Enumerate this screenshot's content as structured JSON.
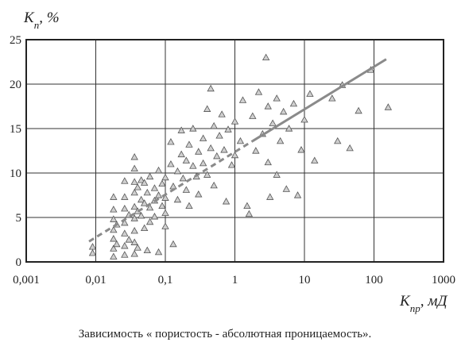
{
  "chart_data": {
    "type": "scatter",
    "y_label": {
      "symbol": "K",
      "subscript": "п",
      "unit": ", %"
    },
    "x_label": {
      "symbol": "K",
      "subscript": "пр",
      "unit": ", мД"
    },
    "caption": "Зависимость « пористость - абсолютная проницаемость».",
    "xscale": "log",
    "grid": true,
    "xlim": [
      0.001,
      1000
    ],
    "ylim": [
      0,
      25
    ],
    "xticks": [
      {
        "value": 0.001,
        "label": "0,001"
      },
      {
        "value": 0.01,
        "label": "0,01"
      },
      {
        "value": 0.1,
        "label": "0,1"
      },
      1,
      10,
      100,
      1000
    ],
    "yticks": [
      0,
      5,
      10,
      15,
      20,
      25
    ],
    "series": [
      {
        "type": "scatter",
        "color": "#cfcfcf",
        "x": [
          0.009,
          0.009,
          0.018,
          0.018,
          0.018,
          0.018,
          0.018,
          0.018,
          0.018,
          0.02,
          0.02,
          0.026,
          0.026,
          0.026,
          0.026,
          0.026,
          0.026,
          0.026,
          0.03,
          0.03,
          0.036,
          0.036,
          0.036,
          0.036,
          0.036,
          0.036,
          0.036,
          0.036,
          0.036,
          0.04,
          0.04,
          0.04,
          0.045,
          0.045,
          0.045,
          0.05,
          0.05,
          0.05,
          0.055,
          0.055,
          0.06,
          0.06,
          0.06,
          0.07,
          0.07,
          0.07,
          0.08,
          0.08,
          0.08,
          0.09,
          0.09,
          0.1,
          0.1,
          0.1,
          0.1,
          0.12,
          0.12,
          0.13,
          0.13,
          0.15,
          0.15,
          0.17,
          0.17,
          0.18,
          0.2,
          0.2,
          0.22,
          0.22,
          0.25,
          0.25,
          0.28,
          0.3,
          0.3,
          0.35,
          0.35,
          0.4,
          0.4,
          0.45,
          0.45,
          0.5,
          0.5,
          0.55,
          0.6,
          0.65,
          0.7,
          0.75,
          0.8,
          0.9,
          1.0,
          1.0,
          1.2,
          1.3,
          1.5,
          1.6,
          1.8,
          2.0,
          2.2,
          2.5,
          2.8,
          3.0,
          3.0,
          3.2,
          3.5,
          4.0,
          4.0,
          4.5,
          5,
          5.5,
          6,
          7,
          8,
          9,
          10,
          12,
          14,
          25,
          30,
          35,
          45,
          60,
          90,
          160
        ],
        "values": [
          1.7,
          1.0,
          7.3,
          5.9,
          4.8,
          3.6,
          2.6,
          1.5,
          0.6,
          4.2,
          2.0,
          9.1,
          7.3,
          6.0,
          4.4,
          3.2,
          1.8,
          0.8,
          5.3,
          2.5,
          11.8,
          10.5,
          9.0,
          7.8,
          6.2,
          4.9,
          3.5,
          2.2,
          0.9,
          8.4,
          5.7,
          1.6,
          9.2,
          7.0,
          5.2,
          8.9,
          6.6,
          3.8,
          7.8,
          1.3,
          9.6,
          6.1,
          4.5,
          8.3,
          6.9,
          5.1,
          10.3,
          7.5,
          1.1,
          8.8,
          6.3,
          9.5,
          7.2,
          5.5,
          4.0,
          13.5,
          11.0,
          8.5,
          2.0,
          10.2,
          7.0,
          14.8,
          12.1,
          9.4,
          11.4,
          8.1,
          13.2,
          6.3,
          10.8,
          15.0,
          9.6,
          12.4,
          7.6,
          13.9,
          11.1,
          17.2,
          9.8,
          19.5,
          12.8,
          15.3,
          8.6,
          11.9,
          14.2,
          16.6,
          12.6,
          6.8,
          14.9,
          10.9,
          15.8,
          12.0,
          13.6,
          18.2,
          6.3,
          5.4,
          16.4,
          12.5,
          19.1,
          14.4,
          23.0,
          17.5,
          11.2,
          7.3,
          15.6,
          18.4,
          9.8,
          13.6,
          16.9,
          8.2,
          15.0,
          17.8,
          7.5,
          12.6,
          16.0,
          18.9,
          11.4,
          18.4,
          13.6,
          19.9,
          12.8,
          17.0,
          21.6,
          17.4
        ]
      },
      {
        "type": "line",
        "style": "dashed",
        "color": "#8a8a8a",
        "x": [
          0.008,
          1.8
        ],
        "values": [
          2.3,
          13.6
        ]
      },
      {
        "type": "line",
        "style": "solid",
        "color": "#8a8a8a",
        "x": [
          1.8,
          150
        ],
        "values": [
          13.6,
          22.8
        ]
      }
    ]
  }
}
